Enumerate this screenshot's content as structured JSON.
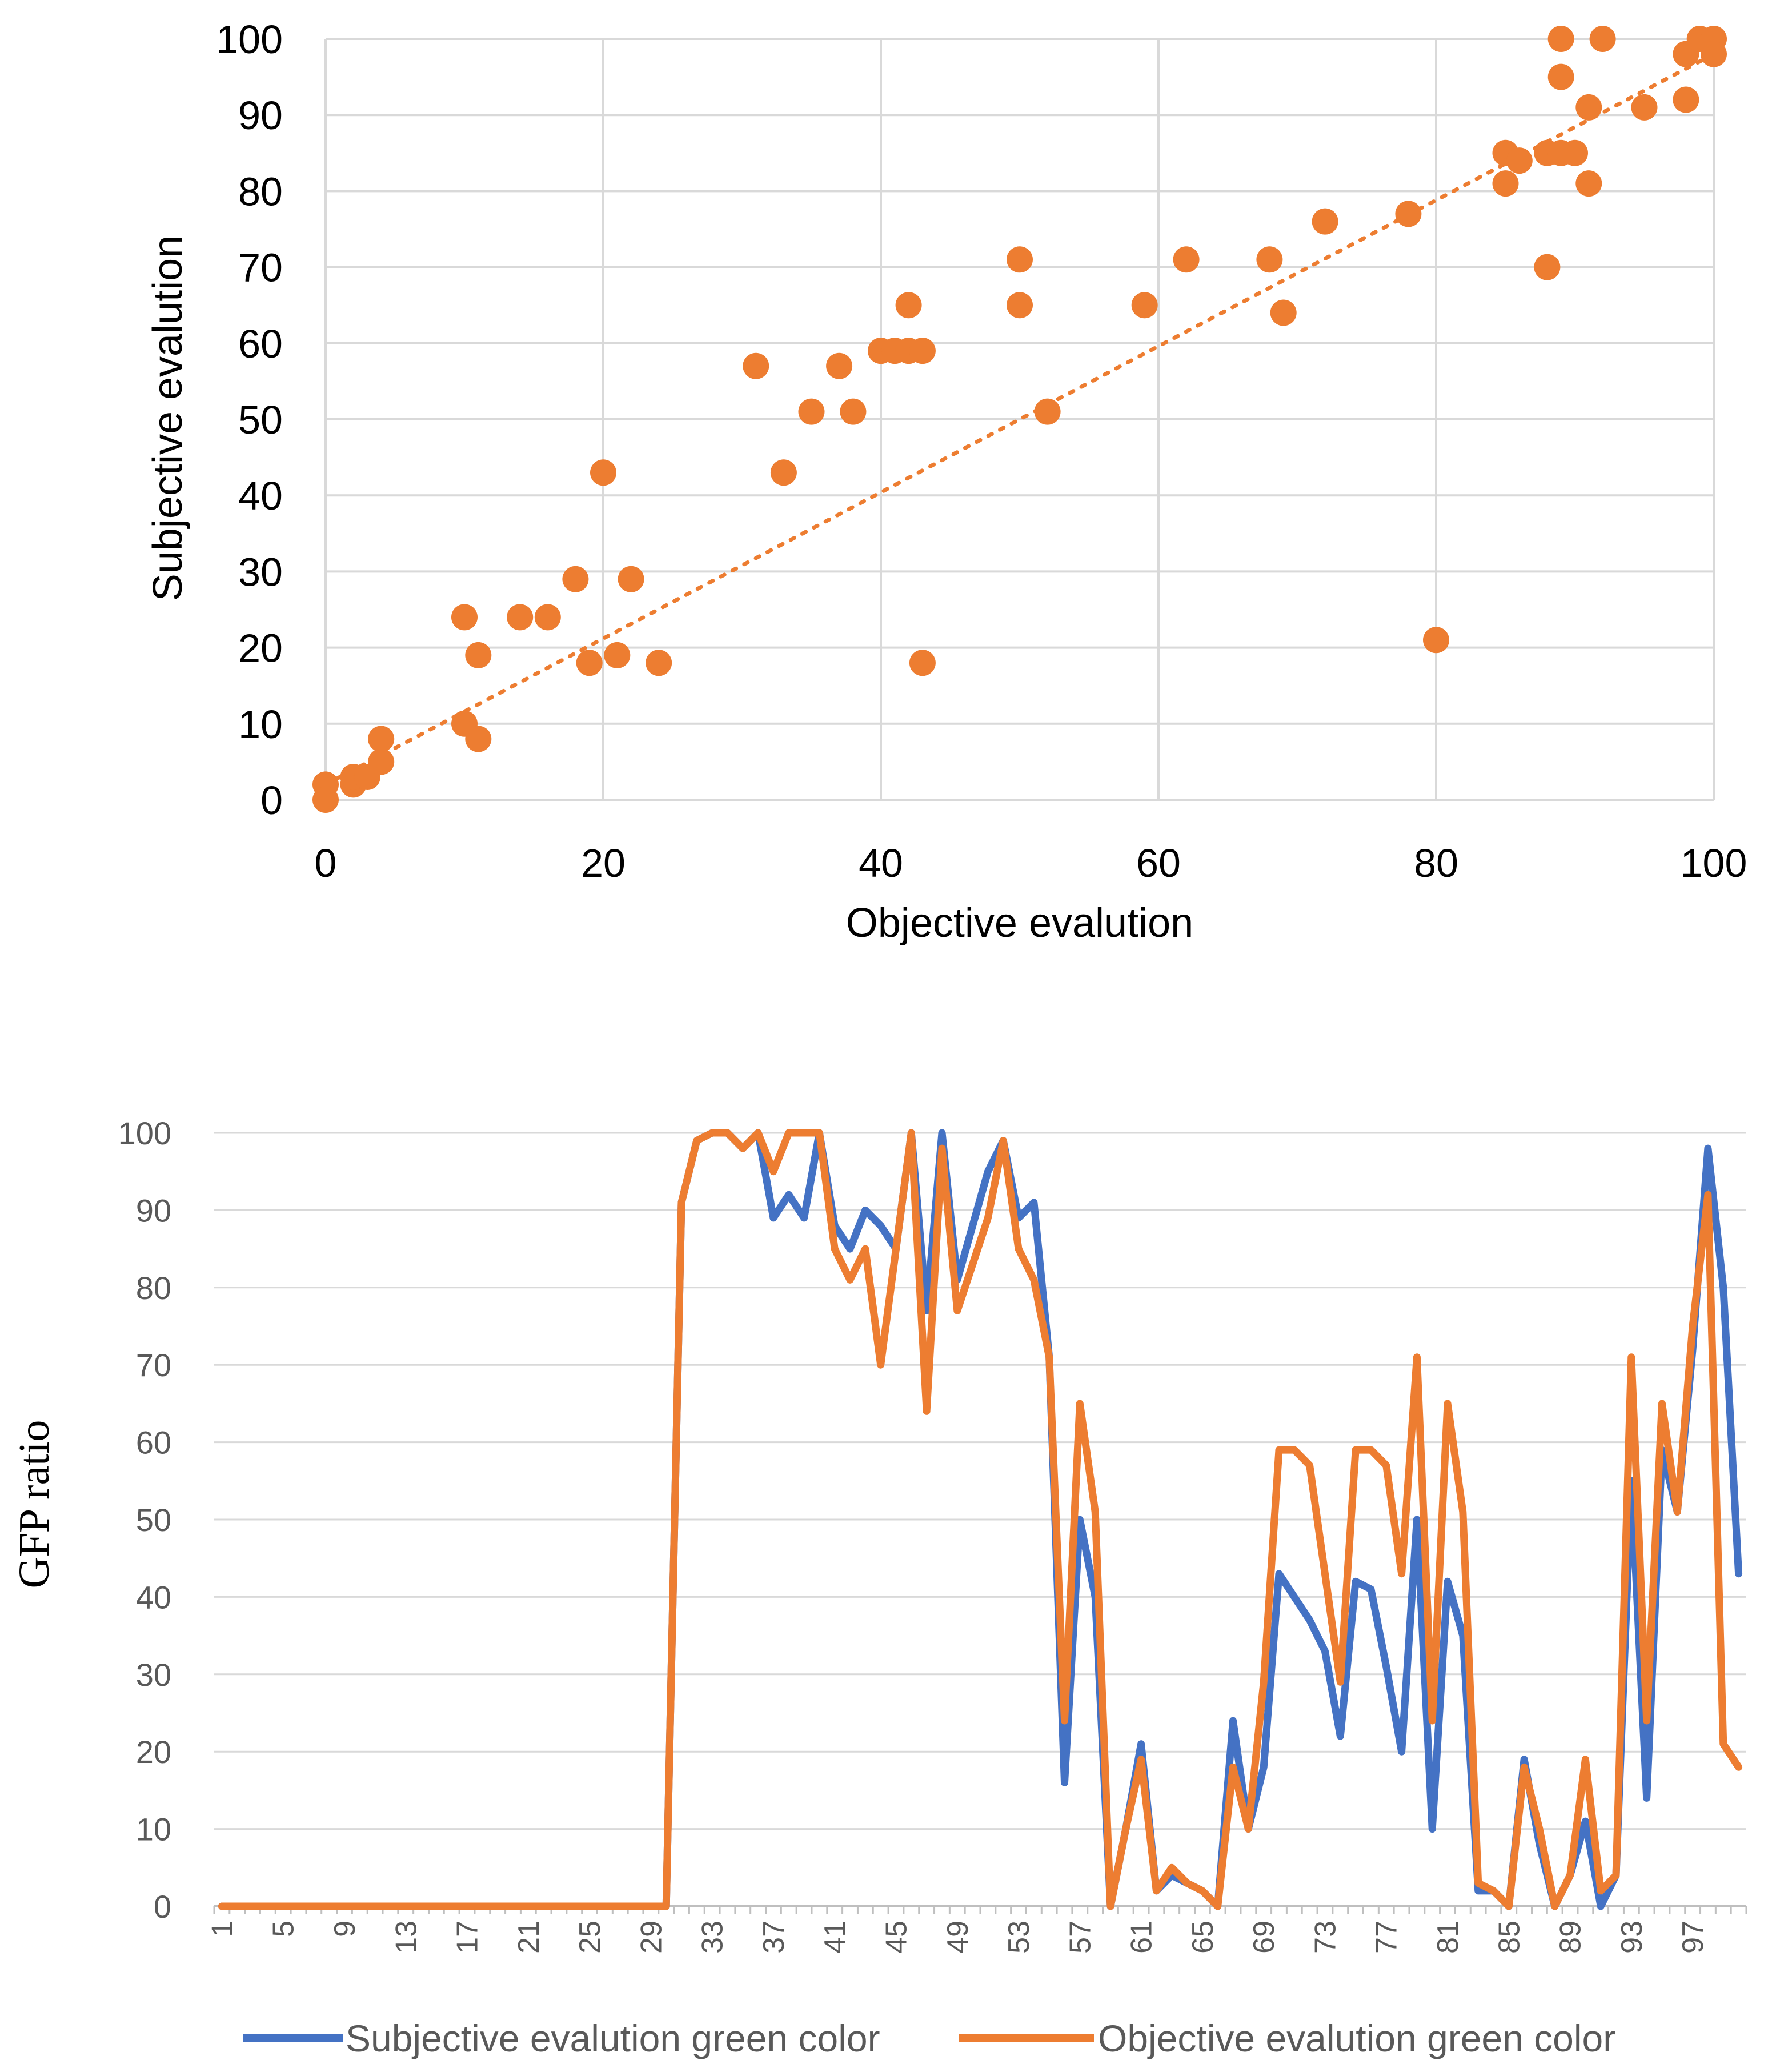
{
  "colors": {
    "orange": "#ED7D31",
    "blue": "#4472C4",
    "grid": "#D9D9D9",
    "axis_text": "#000000",
    "axis_text_gray": "#595959"
  },
  "chart_data": [
    {
      "type": "scatter",
      "xlabel": "Objective evalution",
      "ylabel": "Subjective evalution",
      "xlim": [
        0,
        100
      ],
      "ylim": [
        0,
        100
      ],
      "xticks": [
        "0",
        "20",
        "40",
        "60",
        "80",
        "100"
      ],
      "yticks": [
        "0",
        "10",
        "20",
        "30",
        "40",
        "50",
        "60",
        "70",
        "80",
        "90",
        "100"
      ],
      "grid": true,
      "trendline": {
        "style": "dotted",
        "from": [
          0,
          2
        ],
        "to": [
          100,
          98
        ]
      },
      "points": [
        [
          0,
          2
        ],
        [
          0,
          0
        ],
        [
          2,
          2
        ],
        [
          2,
          3
        ],
        [
          3,
          3
        ],
        [
          4,
          5
        ],
        [
          4,
          8
        ],
        [
          10,
          24
        ],
        [
          10,
          10
        ],
        [
          11,
          19
        ],
        [
          11,
          8
        ],
        [
          14,
          24
        ],
        [
          16,
          24
        ],
        [
          18,
          29
        ],
        [
          19,
          18
        ],
        [
          20,
          43
        ],
        [
          21,
          19
        ],
        [
          22,
          29
        ],
        [
          24,
          18
        ],
        [
          31,
          57
        ],
        [
          33,
          43
        ],
        [
          35,
          51
        ],
        [
          37,
          57
        ],
        [
          38,
          51
        ],
        [
          40,
          59
        ],
        [
          41,
          59
        ],
        [
          42,
          59
        ],
        [
          42,
          65
        ],
        [
          43,
          59
        ],
        [
          43,
          18
        ],
        [
          50,
          71
        ],
        [
          50,
          65
        ],
        [
          52,
          51
        ],
        [
          59,
          65
        ],
        [
          62,
          71
        ],
        [
          68,
          71
        ],
        [
          69,
          64
        ],
        [
          72,
          76
        ],
        [
          78,
          77
        ],
        [
          80,
          21
        ],
        [
          85,
          85
        ],
        [
          85,
          81
        ],
        [
          86,
          84
        ],
        [
          88,
          85
        ],
        [
          88,
          70
        ],
        [
          89,
          100
        ],
        [
          89,
          95
        ],
        [
          89,
          85
        ],
        [
          90,
          85
        ],
        [
          91,
          91
        ],
        [
          91,
          81
        ],
        [
          92,
          100
        ],
        [
          95,
          91
        ],
        [
          98,
          98
        ],
        [
          98,
          92
        ],
        [
          99,
          100
        ],
        [
          100,
          100
        ],
        [
          100,
          98
        ]
      ]
    },
    {
      "type": "line",
      "ylabel": "GFP ratio",
      "ylim": [
        0,
        100
      ],
      "yticks": [
        "0",
        "10",
        "20",
        "30",
        "40",
        "50",
        "60",
        "70",
        "80",
        "90",
        "100"
      ],
      "x_tick_labels": [
        "1",
        "5",
        "9",
        "13",
        "17",
        "21",
        "25",
        "29",
        "33",
        "37",
        "41",
        "45",
        "49",
        "53",
        "57",
        "61",
        "65",
        "69",
        "73",
        "77",
        "81",
        "85",
        "89",
        "93",
        "97"
      ],
      "grid": true,
      "legend_position": "bottom",
      "series": [
        {
          "name": "Subjective evalution green color",
          "color": "#4472C4",
          "values": [
            0,
            0,
            0,
            0,
            0,
            0,
            0,
            0,
            0,
            0,
            0,
            0,
            0,
            0,
            0,
            0,
            0,
            0,
            0,
            0,
            0,
            0,
            0,
            0,
            0,
            0,
            0,
            0,
            0,
            0,
            91,
            99,
            100,
            100,
            98,
            100,
            89,
            92,
            89,
            100,
            88,
            85,
            90,
            88,
            85,
            100,
            77,
            100,
            81,
            88,
            95,
            99,
            89,
            91,
            71,
            16,
            50,
            40,
            0,
            10,
            21,
            2,
            4,
            3,
            2,
            0,
            24,
            10,
            18,
            43,
            40,
            37,
            33,
            22,
            42,
            41,
            31,
            20,
            50,
            10,
            42,
            35,
            2,
            2,
            0,
            19,
            8,
            0,
            4,
            11,
            0,
            4,
            55,
            14,
            59,
            51,
            72,
            98,
            80,
            43
          ]
        },
        {
          "name": "Objective evalution green color",
          "color": "#ED7D31",
          "values": [
            0,
            0,
            0,
            0,
            0,
            0,
            0,
            0,
            0,
            0,
            0,
            0,
            0,
            0,
            0,
            0,
            0,
            0,
            0,
            0,
            0,
            0,
            0,
            0,
            0,
            0,
            0,
            0,
            0,
            0,
            91,
            99,
            100,
            100,
            98,
            100,
            95,
            100,
            100,
            100,
            85,
            81,
            85,
            70,
            85,
            100,
            64,
            98,
            77,
            83,
            89,
            99,
            85,
            81,
            71,
            24,
            65,
            51,
            0,
            10,
            19,
            2,
            5,
            3,
            2,
            0,
            18,
            10,
            29,
            59,
            59,
            57,
            43,
            29,
            59,
            59,
            57,
            43,
            71,
            24,
            65,
            51,
            3,
            2,
            0,
            18,
            10,
            0,
            4,
            19,
            2,
            4,
            71,
            24,
            65,
            51,
            75,
            92,
            21,
            18
          ]
        }
      ]
    }
  ]
}
